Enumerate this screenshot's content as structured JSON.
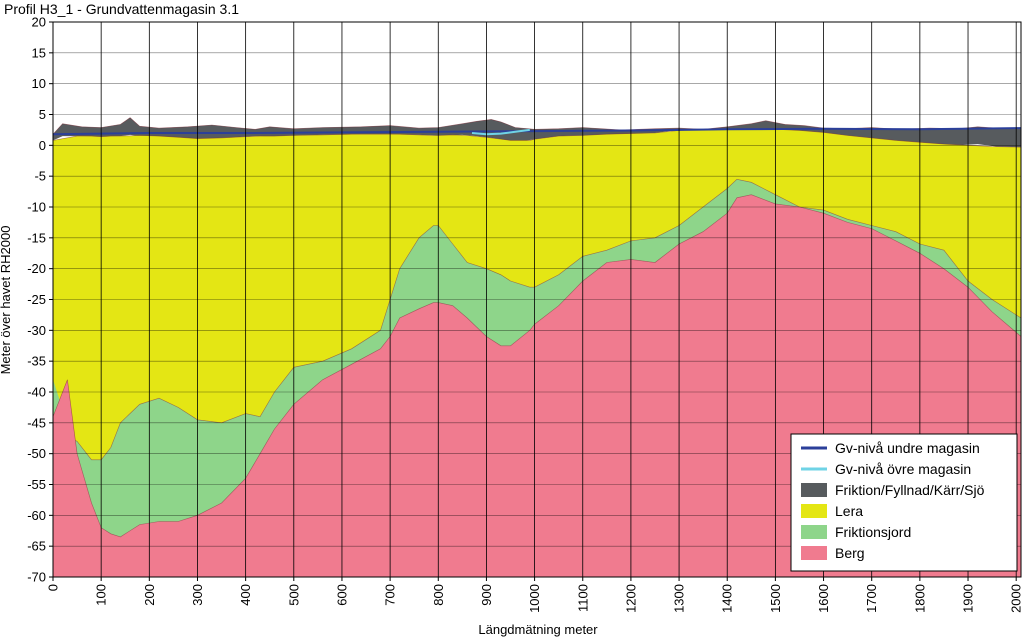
{
  "chart_data": {
    "type": "area",
    "title": "Profil H3_1 - Grundvattenmagasin 3.1",
    "xlabel": "Längdmätning meter",
    "ylabel": "Meter över havet RH2000",
    "xlim": [
      0,
      2010
    ],
    "ylim": [
      -70,
      20
    ],
    "x_ticks": [
      0,
      100,
      200,
      300,
      400,
      500,
      600,
      700,
      800,
      900,
      1000,
      1100,
      1200,
      1300,
      1400,
      1500,
      1600,
      1700,
      1800,
      1900,
      2000
    ],
    "y_ticks": [
      20,
      15,
      10,
      5,
      0,
      -5,
      -10,
      -15,
      -20,
      -25,
      -30,
      -35,
      -40,
      -45,
      -50,
      -55,
      -60,
      -65,
      -70
    ],
    "grid": true,
    "legend_position": "bottom-right",
    "series": [
      {
        "name": "Gv-nivå undre magasin",
        "kind": "line",
        "color": "#2b3f9a",
        "x": [
          0,
          200,
          400,
          600,
          800,
          1000,
          1200,
          1400,
          1600,
          1800,
          2010
        ],
        "y": [
          1.8,
          2.0,
          2.0,
          2.1,
          2.2,
          2.3,
          2.4,
          2.6,
          2.7,
          2.6,
          2.8
        ]
      },
      {
        "name": "Gv-nivå övre magasin",
        "kind": "line",
        "color": "#6fd3e6",
        "x": [
          870,
          900,
          930,
          960,
          990
        ],
        "y": [
          2.0,
          1.8,
          1.9,
          2.2,
          2.5
        ]
      },
      {
        "name": "Friktion/Fyllnad/Kärr/Sjö",
        "kind": "band",
        "color": "#575b5e",
        "x": [
          0,
          20,
          60,
          100,
          140,
          160,
          180,
          220,
          280,
          330,
          380,
          420,
          450,
          500,
          560,
          640,
          700,
          760,
          800,
          850,
          880,
          910,
          930,
          960,
          1000,
          1050,
          1100,
          1180,
          1250,
          1300,
          1350,
          1400,
          1450,
          1480,
          1520,
          1560,
          1600,
          1650,
          1700,
          1760,
          1820,
          1880,
          1920,
          1960,
          2010
        ],
        "top": [
          1.8,
          3.5,
          3.0,
          2.9,
          3.4,
          4.5,
          3.1,
          2.8,
          3.0,
          3.3,
          2.9,
          2.6,
          3.0,
          2.7,
          2.9,
          3.0,
          3.2,
          2.8,
          2.9,
          3.5,
          3.9,
          4.2,
          3.8,
          2.9,
          2.6,
          2.7,
          2.9,
          2.5,
          2.7,
          2.8,
          2.6,
          3.0,
          3.5,
          4.0,
          3.4,
          3.2,
          2.8,
          2.7,
          2.9,
          2.6,
          2.8,
          2.7,
          3.0,
          2.8,
          2.8
        ],
        "bottom": [
          0.8,
          1.5,
          1.5,
          1.4,
          1.5,
          1.7,
          1.5,
          1.3,
          1.0,
          1.1,
          1.3,
          1.5,
          1.4,
          1.6,
          1.7,
          1.8,
          1.8,
          1.7,
          1.6,
          1.7,
          1.5,
          1.2,
          1.0,
          0.5,
          1.0,
          1.5,
          1.6,
          1.8,
          2.0,
          2.5,
          2.6,
          2.6,
          2.6,
          2.7,
          2.5,
          2.3,
          2.0,
          1.5,
          1.0,
          0.5,
          0.3,
          0.0,
          0.2,
          -0.2,
          -0.3
        ]
      },
      {
        "name": "Lera",
        "kind": "band",
        "color": "#e4e614",
        "x": [
          0,
          50,
          80,
          100,
          120,
          140,
          180,
          220,
          260,
          300,
          350,
          400,
          430,
          460,
          500,
          560,
          620,
          680,
          700,
          720,
          760,
          790,
          800,
          830,
          860,
          900,
          950,
          990,
          1000,
          1050,
          1100,
          1150,
          1200,
          1250,
          1300,
          1350,
          1400,
          1420,
          1450,
          1500,
          1550,
          1600,
          1650,
          1700,
          1750,
          1800,
          1850,
          1900,
          1950,
          2010
        ],
        "top": [
          0.8,
          1.5,
          1.5,
          1.4,
          1.5,
          1.5,
          1.6,
          1.5,
          1.3,
          1.1,
          1.2,
          1.4,
          1.5,
          1.5,
          1.6,
          1.7,
          1.8,
          1.8,
          1.8,
          1.8,
          1.7,
          1.6,
          1.6,
          1.7,
          1.6,
          1.3,
          0.8,
          0.8,
          1.0,
          1.5,
          1.6,
          1.8,
          1.9,
          2.0,
          2.4,
          2.6,
          2.6,
          2.6,
          2.6,
          2.6,
          2.4,
          2.1,
          1.6,
          1.2,
          0.8,
          0.5,
          0.2,
          0.0,
          -0.2,
          -0.3
        ],
        "bottom": [
          -46.0,
          -48.0,
          -51.0,
          -51.0,
          -49.0,
          -45.0,
          -42.0,
          -41.0,
          -42.5,
          -44.5,
          -45.0,
          -43.5,
          -44.0,
          -40.0,
          -36.0,
          -35.0,
          -33.0,
          -30.0,
          -25.0,
          -20.0,
          -15.0,
          -13.0,
          -13.0,
          -16.0,
          -19.0,
          -20.0,
          -22.0,
          -23.0,
          -23.0,
          -21.0,
          -18.0,
          -17.0,
          -15.5,
          -15.0,
          -13.0,
          -10.0,
          -7.0,
          -5.5,
          -6.0,
          -8.0,
          -10.0,
          -10.5,
          -12.0,
          -13.0,
          -14.0,
          -16.0,
          -17.0,
          -22.0,
          -25.0,
          -28.0
        ]
      },
      {
        "name": "Friktionsjord",
        "kind": "band",
        "color": "#8ed58a",
        "x": [
          0,
          50,
          80,
          100,
          120,
          140,
          180,
          220,
          260,
          300,
          350,
          400,
          430,
          460,
          500,
          560,
          620,
          680,
          700,
          720,
          760,
          790,
          800,
          830,
          860,
          900,
          930,
          950,
          990,
          1000,
          1050,
          1100,
          1150,
          1200,
          1250,
          1300,
          1350,
          1400,
          1420,
          1450,
          1500,
          1550,
          1600,
          1650,
          1700,
          1750,
          1800,
          1850,
          1900,
          1950,
          2010
        ],
        "top": [
          -46.0,
          -48.0,
          -51.0,
          -51.0,
          -49.0,
          -45.0,
          -42.0,
          -41.0,
          -42.5,
          -44.5,
          -45.0,
          -43.5,
          -44.0,
          -40.0,
          -36.0,
          -35.0,
          -33.0,
          -30.0,
          -25.0,
          -20.0,
          -15.0,
          -13.0,
          -13.0,
          -16.0,
          -19.0,
          -20.0,
          -21.0,
          -22.0,
          -23.0,
          -23.0,
          -21.0,
          -18.0,
          -17.0,
          -15.5,
          -15.0,
          -13.0,
          -10.0,
          -7.0,
          -5.5,
          -6.0,
          -8.0,
          -10.0,
          -10.5,
          -12.0,
          -13.0,
          -14.0,
          -16.0,
          -17.0,
          -22.0,
          -25.0,
          -28.0
        ],
        "bottom": [
          -38.0,
          -50.0,
          -58.0,
          -62.0,
          -63.0,
          -63.5,
          -61.5,
          -61.0,
          -61.0,
          -60.0,
          -58.0,
          -54.0,
          -50.0,
          -46.0,
          -42.0,
          -38.0,
          -35.5,
          -33.0,
          -31.0,
          -28.0,
          -26.5,
          -25.5,
          -25.5,
          -26.0,
          -28.0,
          -31.0,
          -32.5,
          -32.5,
          -30.0,
          -29.0,
          -26.0,
          -22.0,
          -19.0,
          -18.5,
          -19.0,
          -16.0,
          -14.0,
          -11.0,
          -8.5,
          -8.0,
          -9.5,
          -10.0,
          -11.0,
          -12.5,
          -13.5,
          -15.5,
          -17.5,
          -20.0,
          -23.0,
          -27.0,
          -31.0
        ]
      },
      {
        "name": "Berg",
        "kind": "band",
        "color": "#f07b8f",
        "x": [
          0,
          30,
          50,
          80,
          100,
          120,
          140,
          180,
          220,
          260,
          300,
          350,
          400,
          430,
          460,
          500,
          560,
          620,
          680,
          700,
          720,
          760,
          790,
          800,
          830,
          860,
          900,
          930,
          950,
          990,
          1000,
          1050,
          1100,
          1150,
          1200,
          1250,
          1300,
          1350,
          1400,
          1420,
          1450,
          1500,
          1550,
          1600,
          1650,
          1700,
          1750,
          1800,
          1850,
          1900,
          1950,
          2010
        ],
        "top": [
          -44.0,
          -38.0,
          -50.0,
          -58.0,
          -62.0,
          -63.0,
          -63.5,
          -61.5,
          -61.0,
          -61.0,
          -60.0,
          -58.0,
          -54.0,
          -50.0,
          -46.0,
          -42.0,
          -38.0,
          -35.5,
          -33.0,
          -31.0,
          -28.0,
          -26.5,
          -25.5,
          -25.5,
          -26.0,
          -28.0,
          -31.0,
          -32.5,
          -32.5,
          -30.0,
          -29.0,
          -26.0,
          -22.0,
          -19.0,
          -18.5,
          -19.0,
          -16.0,
          -14.0,
          -11.0,
          -8.5,
          -8.0,
          -9.5,
          -10.0,
          -11.0,
          -12.5,
          -13.5,
          -15.5,
          -17.5,
          -20.0,
          -23.0,
          -27.0,
          -31.0
        ],
        "bottom": [
          -70,
          -70,
          -70,
          -70,
          -70,
          -70,
          -70,
          -70,
          -70,
          -70,
          -70,
          -70,
          -70,
          -70,
          -70,
          -70,
          -70,
          -70,
          -70,
          -70,
          -70,
          -70,
          -70,
          -70,
          -70,
          -70,
          -70,
          -70,
          -70,
          -70,
          -70,
          -70,
          -70,
          -70,
          -70,
          -70,
          -70,
          -70,
          -70,
          -70,
          -70,
          -70,
          -70,
          -70,
          -70,
          -70,
          -70,
          -70,
          -70,
          -70,
          -70,
          -70
        ]
      }
    ]
  }
}
